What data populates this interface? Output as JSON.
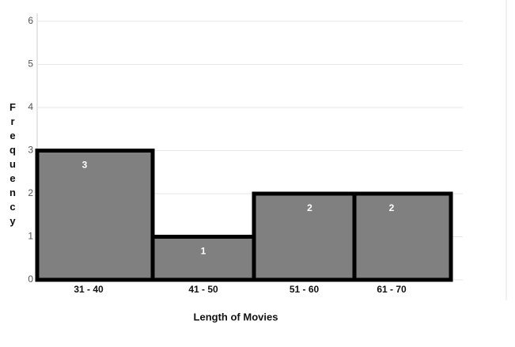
{
  "chart_data": {
    "type": "bar",
    "categories": [
      "31 - 40",
      "41 - 50",
      "51 - 60",
      "61 - 70"
    ],
    "values": [
      3,
      1,
      2,
      2
    ],
    "color": "#808080",
    "x_label": "Length of Movies",
    "y_label": "Frequency",
    "ylim": [
      0,
      6
    ],
    "yticks": [
      0,
      1,
      2,
      3,
      4,
      5,
      6
    ],
    "grid": true
  }
}
